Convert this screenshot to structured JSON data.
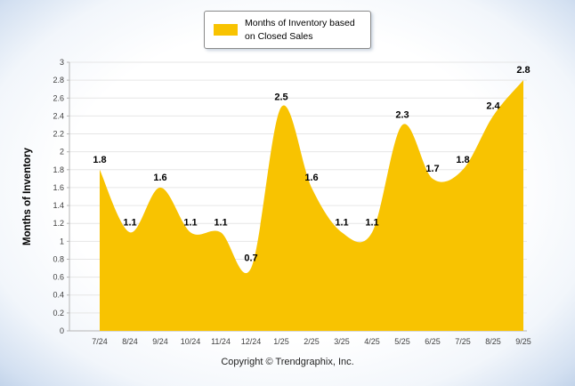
{
  "chart_data": {
    "type": "area",
    "categories": [
      "7/24",
      "8/24",
      "9/24",
      "10/24",
      "11/24",
      "12/24",
      "1/25",
      "2/25",
      "3/25",
      "4/25",
      "5/25",
      "6/25",
      "7/25",
      "8/25",
      "9/25"
    ],
    "values": [
      1.8,
      1.1,
      1.6,
      1.1,
      1.1,
      0.7,
      2.5,
      1.6,
      1.1,
      1.1,
      2.3,
      1.7,
      1.8,
      2.4,
      2.8
    ],
    "title": "",
    "xlabel": "",
    "ylabel": "Months of Inventory",
    "ylim": [
      0,
      3
    ],
    "ytick_step": 0.2,
    "grid": true,
    "legend_position": "top",
    "series_name": "Months of Inventory based on Closed Sales",
    "series_color": "#f8c301"
  },
  "legend": {
    "line1": "Months of Inventory based",
    "line2": "on Closed Sales"
  },
  "footer": {
    "copyright": "Copyright © Trendgraphix, Inc."
  },
  "colors": {
    "fill": "#f8c301",
    "grid": "#e6e6e6",
    "axis": "#b5b5b5",
    "tick_text": "#404040",
    "data_label": "#000000"
  }
}
